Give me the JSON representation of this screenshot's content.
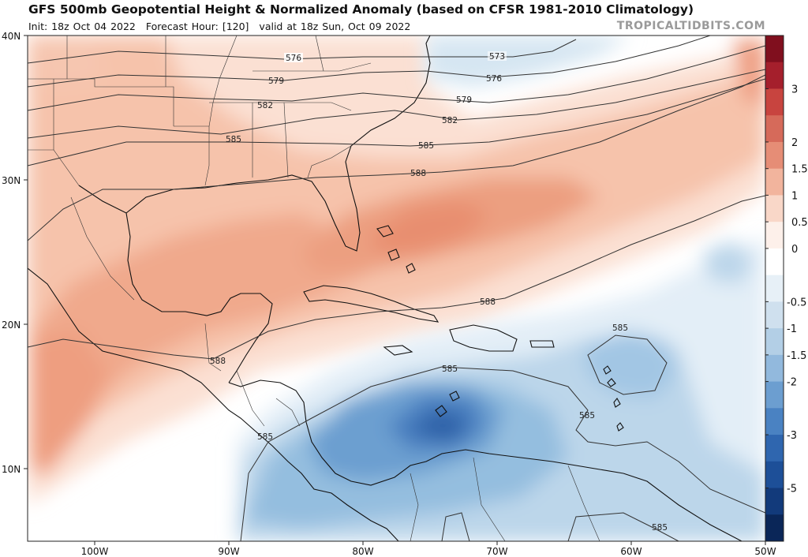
{
  "header": {
    "title": "GFS 500mb Geopotential Height & Normalized Anomaly (based on CFSR 1981-2010 Climatology)",
    "init": "Init: 18z Oct 04 2022",
    "forecast_hour": "Forecast Hour: [120]",
    "valid": "valid at 18z Sun, Oct 09 2022",
    "brand": "TROPICALTIDBITS.COM"
  },
  "map": {
    "lat_labels": [
      "40N",
      "30N",
      "20N",
      "10N"
    ],
    "lon_labels": [
      "100W",
      "90W",
      "80W",
      "70W",
      "60W",
      "50W"
    ],
    "contour_labels": [
      "573",
      "576",
      "576",
      "579",
      "579",
      "582",
      "582",
      "585",
      "585",
      "588",
      "588",
      "588",
      "585",
      "585",
      "585",
      "585"
    ]
  },
  "colorbar": {
    "labels": [
      "3",
      "2",
      "1.5",
      "1",
      "0.5",
      "0",
      "-0.5",
      "-1",
      "-1.5",
      "-2",
      "-3",
      "-5"
    ],
    "colors": [
      "#800f1e",
      "#a51f2c",
      "#c8443f",
      "#d66a5a",
      "#e68d76",
      "#f2b49d",
      "#f9d7c8",
      "#fdf0ea",
      "#ffffff",
      "#e7f0f7",
      "#cfe0ee",
      "#b3cfe6",
      "#92b9dd",
      "#6c9ed0",
      "#4a82c2",
      "#2f66af",
      "#1d4f98",
      "#123a7b",
      "#0a2658"
    ]
  }
}
